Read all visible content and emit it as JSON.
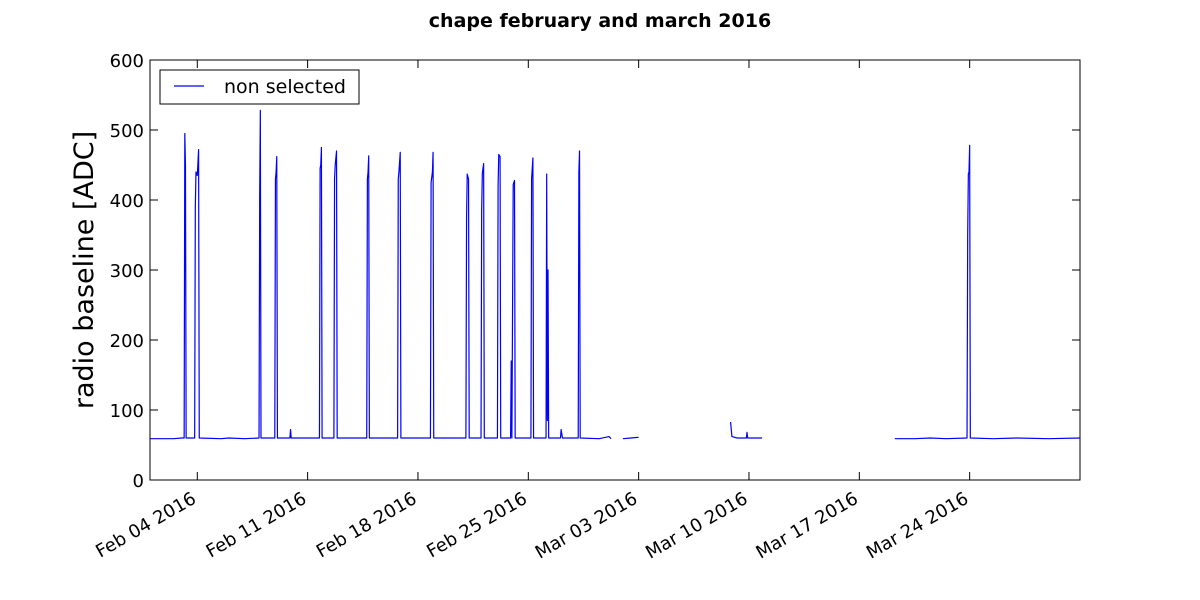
{
  "chart_data": {
    "type": "line",
    "title": "chape february and march 2016",
    "xlabel": "",
    "ylabel": "radio baseline [ADC]",
    "ylim": [
      0,
      600
    ],
    "y_ticks": [
      0,
      100,
      200,
      300,
      400,
      500,
      600
    ],
    "x_axis": {
      "type": "date",
      "range": [
        "2016-02-01",
        "2016-03-31"
      ],
      "ticks": [
        {
          "date": "2016-02-04",
          "label": "Feb 04 2016"
        },
        {
          "date": "2016-02-11",
          "label": "Feb 11 2016"
        },
        {
          "date": "2016-02-18",
          "label": "Feb 18 2016"
        },
        {
          "date": "2016-02-25",
          "label": "Feb 25 2016"
        },
        {
          "date": "2016-03-03",
          "label": "Mar 03 2016"
        },
        {
          "date": "2016-03-10",
          "label": "Mar 10 2016"
        },
        {
          "date": "2016-03-17",
          "label": "Mar 17 2016"
        },
        {
          "date": "2016-03-24",
          "label": "Mar 24 2016"
        }
      ]
    },
    "grid": false,
    "legend": {
      "position": "top-left",
      "entries": [
        "non selected"
      ]
    },
    "series": [
      {
        "name": "non selected",
        "color": "#0000ff",
        "segments": [
          [
            [
              "2016-02-01T00:00",
              59
            ],
            [
              "2016-02-02T12:00",
              59
            ],
            [
              "2016-02-03T00:00",
              60
            ],
            [
              "2016-02-03T04:00",
              60
            ],
            [
              "2016-02-03T05:00",
              495
            ],
            [
              "2016-02-03T06:00",
              450
            ],
            [
              "2016-02-03T07:00",
              60
            ],
            [
              "2016-02-03T20:00",
              60
            ],
            [
              "2016-02-03T21:00",
              390
            ],
            [
              "2016-02-03T22:00",
              440
            ],
            [
              "2016-02-04T00:00",
              435
            ],
            [
              "2016-02-04T02:00",
              472
            ],
            [
              "2016-02-04T03:00",
              60
            ],
            [
              "2016-02-05T12:00",
              59
            ],
            [
              "2016-02-06T00:00",
              60
            ],
            [
              "2016-02-07T00:00",
              59
            ],
            [
              "2016-02-07T22:00",
              60
            ],
            [
              "2016-02-07T23:00",
              405
            ],
            [
              "2016-02-08T00:00",
              528
            ],
            [
              "2016-02-08T01:00",
              60
            ],
            [
              "2016-02-08T22:00",
              60
            ],
            [
              "2016-02-08T23:00",
              430
            ],
            [
              "2016-02-09T00:00",
              440
            ],
            [
              "2016-02-09T01:00",
              462
            ],
            [
              "2016-02-09T02:00",
              60
            ],
            [
              "2016-02-09T21:00",
              60
            ],
            [
              "2016-02-09T22:00",
              72
            ],
            [
              "2016-02-09T23:00",
              60
            ],
            [
              "2016-02-11T18:00",
              60
            ],
            [
              "2016-02-11T19:00",
              445
            ],
            [
              "2016-02-11T20:00",
              450
            ],
            [
              "2016-02-11T21:00",
              475
            ],
            [
              "2016-02-11T22:00",
              60
            ],
            [
              "2016-02-12T16:00",
              60
            ],
            [
              "2016-02-12T17:00",
              430
            ],
            [
              "2016-02-12T18:00",
              450
            ],
            [
              "2016-02-12T20:00",
              470
            ],
            [
              "2016-02-12T21:00",
              60
            ],
            [
              "2016-02-14T18:00",
              60
            ],
            [
              "2016-02-14T19:00",
              430
            ],
            [
              "2016-02-14T20:00",
              440
            ],
            [
              "2016-02-14T21:00",
              463
            ],
            [
              "2016-02-14T22:00",
              60
            ],
            [
              "2016-02-16T17:00",
              60
            ],
            [
              "2016-02-16T18:00",
              430
            ],
            [
              "2016-02-16T19:00",
              440
            ],
            [
              "2016-02-16T21:00",
              468
            ],
            [
              "2016-02-16T22:00",
              60
            ],
            [
              "2016-02-18T19:00",
              60
            ],
            [
              "2016-02-18T20:00",
              425
            ],
            [
              "2016-02-18T22:00",
              440
            ],
            [
              "2016-02-18T23:00",
              468
            ],
            [
              "2016-02-19T00:00",
              60
            ],
            [
              "2016-02-21T01:00",
              60
            ],
            [
              "2016-02-21T02:00",
              375
            ],
            [
              "2016-02-21T03:00",
              437
            ],
            [
              "2016-02-21T05:00",
              430
            ],
            [
              "2016-02-21T06:00",
              60
            ],
            [
              "2016-02-22T00:00",
              60
            ],
            [
              "2016-02-22T01:00",
              385
            ],
            [
              "2016-02-22T02:00",
              438
            ],
            [
              "2016-02-22T04:00",
              452
            ],
            [
              "2016-02-22T05:00",
              60
            ],
            [
              "2016-02-23T01:00",
              60
            ],
            [
              "2016-02-23T02:00",
              420
            ],
            [
              "2016-02-23T03:00",
              465
            ],
            [
              "2016-02-23T05:00",
              462
            ],
            [
              "2016-02-23T06:00",
              60
            ],
            [
              "2016-02-23T21:00",
              60
            ],
            [
              "2016-02-23T22:00",
              170
            ],
            [
              "2016-02-23T23:00",
              60
            ],
            [
              "2016-02-24T01:00",
              422
            ],
            [
              "2016-02-24T03:00",
              428
            ],
            [
              "2016-02-24T04:00",
              60
            ],
            [
              "2016-02-25T04:00",
              60
            ],
            [
              "2016-02-25T05:00",
              430
            ],
            [
              "2016-02-25T07:00",
              460
            ],
            [
              "2016-02-25T08:00",
              60
            ],
            [
              "2016-02-26T03:00",
              60
            ],
            [
              "2016-02-26T04:00",
              437
            ],
            [
              "2016-02-26T05:00",
              85
            ],
            [
              "2016-02-26T06:00",
              300
            ],
            [
              "2016-02-26T07:00",
              60
            ],
            [
              "2016-02-27T01:00",
              60
            ],
            [
              "2016-02-27T02:00",
              72
            ],
            [
              "2016-02-27T04:00",
              60
            ],
            [
              "2016-02-28T04:00",
              60
            ],
            [
              "2016-02-28T05:00",
              440
            ],
            [
              "2016-02-28T06:00",
              470
            ],
            [
              "2016-02-28T07:00",
              60
            ],
            [
              "2016-02-29T12:00",
              59
            ],
            [
              "2016-03-01T03:00",
              62
            ],
            [
              "2016-03-01T06:00",
              59
            ]
          ],
          [
            [
              "2016-03-02T00:00",
              59
            ],
            [
              "2016-03-02T12:00",
              60
            ],
            [
              "2016-03-03T00:00",
              61
            ]
          ],
          [
            [
              "2016-03-08T20:00",
              83
            ],
            [
              "2016-03-08T22:00",
              62
            ],
            [
              "2016-03-09T06:00",
              60
            ],
            [
              "2016-03-09T20:00",
              60
            ],
            [
              "2016-03-09T21:00",
              68
            ],
            [
              "2016-03-09T22:00",
              60
            ],
            [
              "2016-03-10T20:00",
              60
            ]
          ],
          [
            [
              "2016-03-19T06:00",
              59
            ],
            [
              "2016-03-20T12:00",
              59
            ],
            [
              "2016-03-21T12:00",
              60
            ],
            [
              "2016-03-22T12:00",
              59
            ],
            [
              "2016-03-23T20:00",
              60
            ],
            [
              "2016-03-23T21:00",
              350
            ],
            [
              "2016-03-23T22:00",
              437
            ],
            [
              "2016-03-23T23:00",
              440
            ],
            [
              "2016-03-24T00:00",
              478
            ],
            [
              "2016-03-24T01:00",
              60
            ],
            [
              "2016-03-25T12:00",
              59
            ],
            [
              "2016-03-27T00:00",
              60
            ],
            [
              "2016-03-29T00:00",
              59
            ],
            [
              "2016-03-31T00:00",
              60
            ]
          ]
        ]
      }
    ]
  }
}
